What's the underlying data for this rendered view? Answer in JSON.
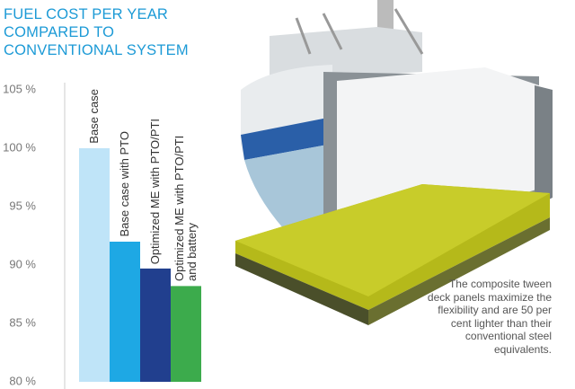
{
  "chart_data": {
    "type": "bar",
    "title": "FUEL COST PER YEAR COMPARED TO CONVENTIONAL SYSTEM",
    "categories": [
      "Base case",
      "Base case with PTO",
      "Optimized ME with PTO/PTI",
      "Optimized ME with PTO/PTI and battery"
    ],
    "values": [
      100,
      92,
      89.7,
      88.2
    ],
    "colors": [
      "#bfe4f8",
      "#1ea8e4",
      "#213f8e",
      "#3cab4c"
    ],
    "ylim": [
      80,
      105
    ],
    "yticks": [
      {
        "value": 105,
        "label": "105 %"
      },
      {
        "value": 100,
        "label": "100 %"
      },
      {
        "value": 95,
        "label": "95 %"
      },
      {
        "value": 90,
        "label": "90 %"
      },
      {
        "value": 85,
        "label": "85 %"
      },
      {
        "value": 80,
        "label": "80 %"
      }
    ],
    "grid": false
  },
  "caption": "The composite tween deck panels maximize the flexibility and are 50 per cent lighter than their conventional steel equivalents."
}
